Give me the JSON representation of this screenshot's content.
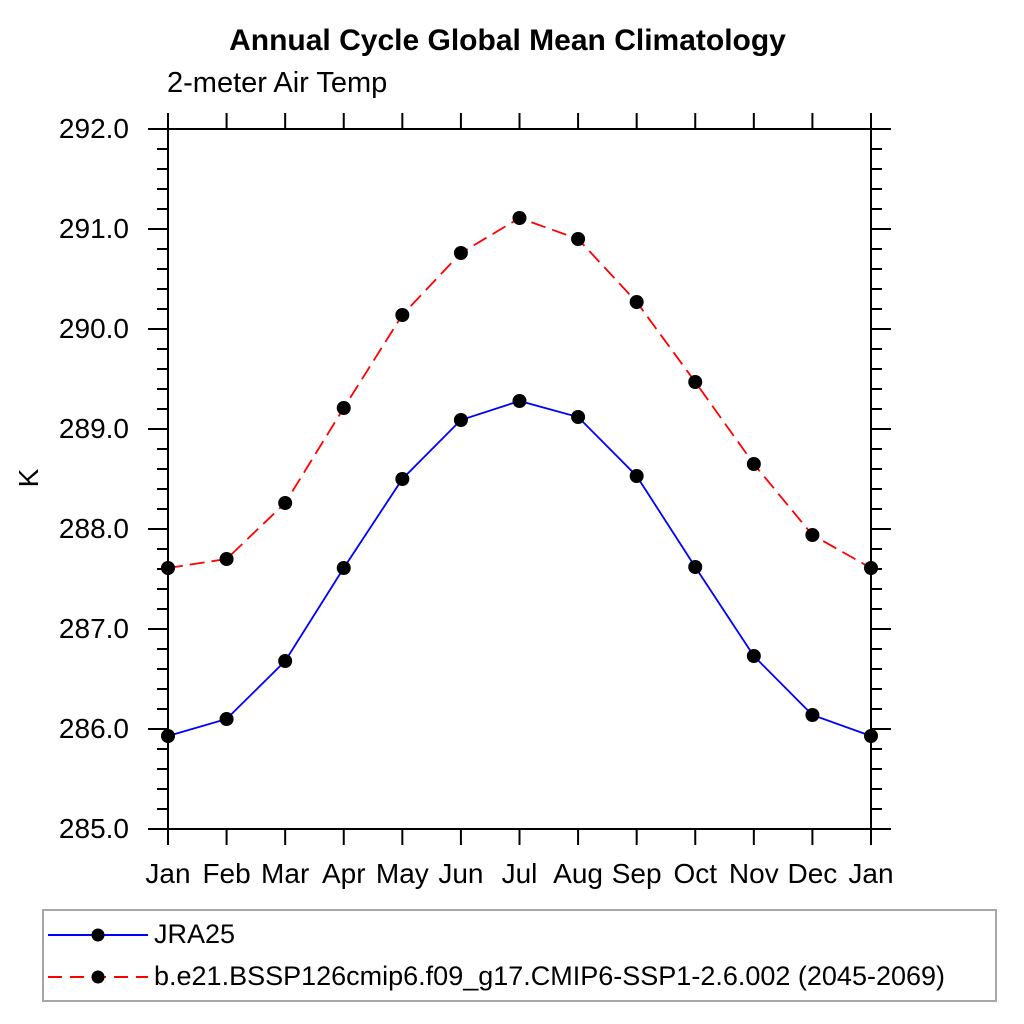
{
  "header": {
    "title": "Annual Cycle Global Mean Climatology",
    "subtitle": "2-meter Air Temp"
  },
  "chart_data": {
    "type": "line",
    "title": "Annual Cycle Global Mean Climatology",
    "subtitle": "2-meter Air Temp",
    "xlabel": "",
    "ylabel": "K",
    "categories": [
      "Jan",
      "Feb",
      "Mar",
      "Apr",
      "May",
      "Jun",
      "Jul",
      "Aug",
      "Sep",
      "Oct",
      "Nov",
      "Dec",
      "Jan"
    ],
    "ylim": [
      285.0,
      292.0
    ],
    "ytick_interval": 1.0,
    "ytick_minor_interval": 0.2,
    "ytick_labels": [
      "285.0",
      "286.0",
      "287.0",
      "288.0",
      "289.0",
      "290.0",
      "291.0",
      "292.0"
    ],
    "grid": false,
    "frame": "box-with-outward-ticks",
    "legend_position": "bottom-left-box",
    "series": [
      {
        "name": "JRA25",
        "color": "#0000ff",
        "line_style": "solid",
        "marker": "filled-circle",
        "marker_color": "#000000",
        "values": [
          285.93,
          286.1,
          286.68,
          287.61,
          288.5,
          289.09,
          289.28,
          289.12,
          288.53,
          287.62,
          286.73,
          286.14,
          285.93
        ]
      },
      {
        "name": "b.e21.BSSP126cmip6.f09_g17.CMIP6-SSP1-2.6.002 (2045-2069)",
        "color": "#ff0000",
        "line_style": "dashed",
        "marker": "filled-circle",
        "marker_color": "#000000",
        "values": [
          287.61,
          287.7,
          288.26,
          289.21,
          290.14,
          290.76,
          291.11,
          290.9,
          290.27,
          289.47,
          288.65,
          287.94,
          287.61
        ]
      }
    ]
  },
  "colors": {
    "axis": "#000000",
    "text": "#000000",
    "legend_border": "#a6a6a6",
    "background": "#ffffff"
  }
}
